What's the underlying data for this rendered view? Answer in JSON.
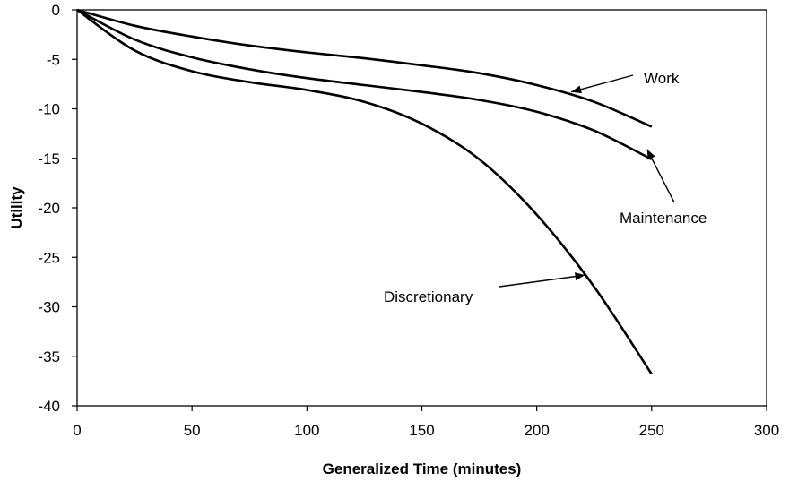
{
  "chart_data": {
    "type": "line",
    "title": "",
    "xlabel": "Generalized Time (minutes)",
    "ylabel": "Utility",
    "xlim": [
      0,
      300
    ],
    "ylim": [
      -40,
      0
    ],
    "xticks": [
      0,
      50,
      100,
      150,
      200,
      250,
      300
    ],
    "yticks": [
      0,
      -5,
      -10,
      -15,
      -20,
      -25,
      -30,
      -35,
      -40
    ],
    "grid": false,
    "legend": "none",
    "series": [
      {
        "name": "Work",
        "x": [
          0,
          25,
          50,
          75,
          100,
          125,
          150,
          175,
          200,
          225,
          250
        ],
        "y": [
          0,
          -1.6,
          -2.7,
          -3.6,
          -4.3,
          -4.9,
          -5.6,
          -6.4,
          -7.6,
          -9.3,
          -11.8
        ]
      },
      {
        "name": "Maintenance",
        "x": [
          0,
          25,
          50,
          75,
          100,
          125,
          150,
          175,
          200,
          225,
          250
        ],
        "y": [
          0,
          -3.0,
          -4.8,
          -6.0,
          -6.9,
          -7.6,
          -8.3,
          -9.1,
          -10.3,
          -12.2,
          -15.1
        ]
      },
      {
        "name": "Discretionary",
        "x": [
          0,
          25,
          50,
          75,
          100,
          125,
          150,
          175,
          200,
          225,
          250
        ],
        "y": [
          0,
          -4.1,
          -6.2,
          -7.3,
          -8.1,
          -9.3,
          -11.5,
          -15.1,
          -20.7,
          -28.0,
          -36.8
        ]
      }
    ],
    "annotations": [
      {
        "text": "Work",
        "series": "Work",
        "arrow_to": [
          215,
          -8.3
        ]
      },
      {
        "text": "Maintenance",
        "series": "Maintenance",
        "arrow_to": [
          248,
          -14.1
        ]
      },
      {
        "text": "Discretionary",
        "series": "Discretionary",
        "arrow_to": [
          221,
          -26.8
        ]
      }
    ]
  }
}
